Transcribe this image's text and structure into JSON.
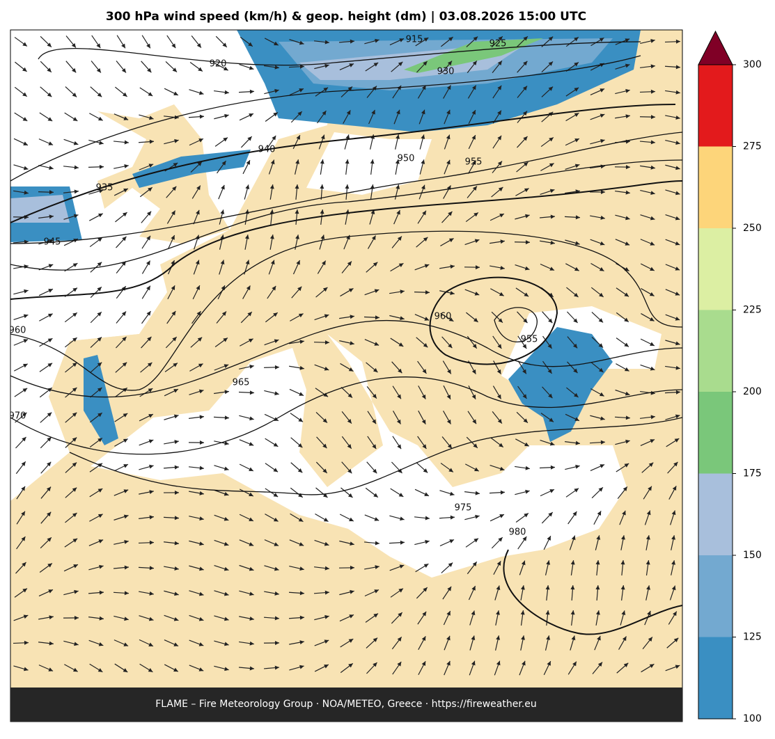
{
  "header": {
    "title": "300 hPa wind speed (km/h) & geop. height (dm)  |  03.08.2026 15:00 UTC"
  },
  "contour_labels": [
    "915",
    "920",
    "925",
    "930",
    "935",
    "940",
    "945",
    "950",
    "955",
    "955",
    "960",
    "960",
    "965",
    "970",
    "975",
    "980"
  ],
  "colorbar": {
    "ticks": [
      100,
      125,
      150,
      175,
      200,
      225,
      250,
      275,
      300
    ],
    "colors": [
      "#3a8fc2",
      "#73a9d0",
      "#a8bfdc",
      "#7ac77a",
      "#a9dc8e",
      "#dcefa3",
      "#fdd57a",
      "#e31a1c"
    ],
    "extend_color": "#800026"
  },
  "footer": {
    "text": "FLAME – Fire Meteorology Group · NOA/METEO, Greece · https://fireweather.eu"
  }
}
